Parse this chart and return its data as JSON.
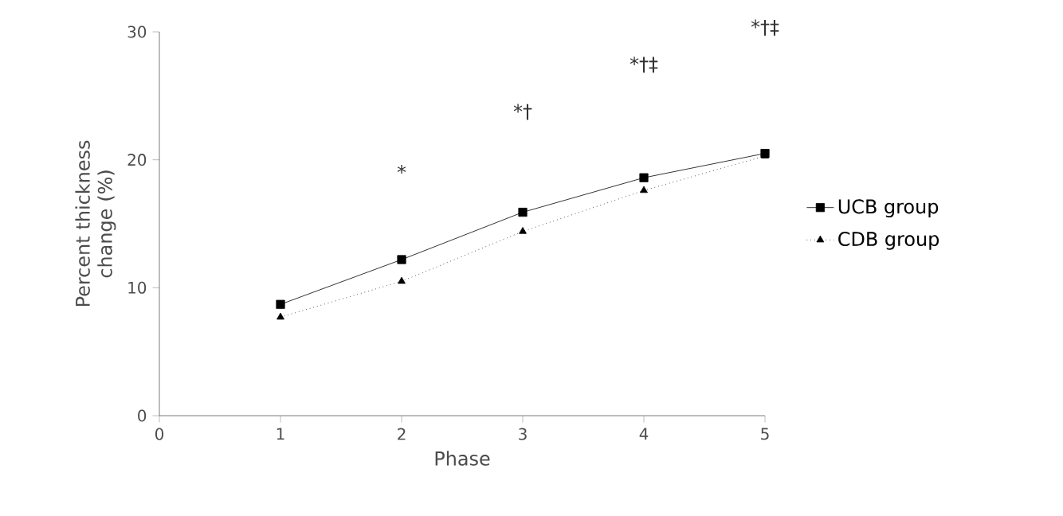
{
  "chart_data": {
    "type": "line",
    "xlabel": "Phase",
    "ylabel": "Percent thickness change (%)",
    "x": [
      1,
      2,
      3,
      4,
      5
    ],
    "series": [
      {
        "name": "UCB group",
        "color": "#000000",
        "marker": "square",
        "line_style": "solid",
        "values": [
          8.7,
          12.2,
          15.9,
          18.6,
          20.5
        ]
      },
      {
        "name": "CDB group",
        "color": "#000000",
        "marker": "triangle",
        "line_style": "dotted",
        "values": [
          7.7,
          10.5,
          14.4,
          17.6,
          20.3
        ]
      }
    ],
    "xlim": [
      0,
      5
    ],
    "xticks": [
      0,
      1,
      2,
      3,
      4,
      5
    ],
    "ylim": [
      0,
      30
    ],
    "yticks": [
      0,
      10,
      20,
      30
    ],
    "grid": false,
    "legend": "right",
    "annotations": [
      "*",
      "*†",
      "*†‡",
      "*†‡"
    ]
  }
}
